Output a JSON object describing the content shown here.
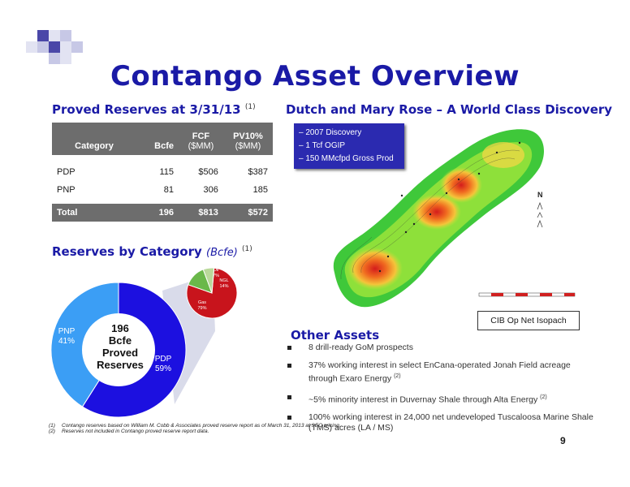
{
  "title": "Contango Asset Overview",
  "proved_reserves": {
    "heading": "Proved Reserves at 3/31/13",
    "heading_note": "(1)",
    "columns": [
      "Category",
      "Bcfe",
      "FCF\n($MM)",
      "PV10%\n($MM)"
    ],
    "col_category": "Category",
    "col_bcfe": "Bcfe",
    "col_fcf_1": "FCF",
    "col_fcf_2": "($MM)",
    "col_pv_1": "PV10%",
    "col_pv_2": "($MM)",
    "rows": [
      {
        "category": "PDP",
        "bcfe": "115",
        "fcf": "$506",
        "pv10": "$387"
      },
      {
        "category": "PNP",
        "bcfe": "81",
        "fcf": "306",
        "pv10": "185"
      }
    ],
    "total": {
      "category": "Total",
      "bcfe": "196",
      "fcf": "$813",
      "pv10": "$572"
    }
  },
  "reserves_by_category": {
    "heading": "Reserves by Category",
    "unit": "(Bcfe)",
    "note": "(1)",
    "center_lines": [
      "196",
      "Bcfe",
      "Proved",
      "Reserves"
    ],
    "pdp_label": "PDP",
    "pdp_pct": "59%",
    "pnp_label": "PNP",
    "pnp_pct": "41%",
    "oil_label": "Oil",
    "oil_pct": "7%",
    "ngl_label": "NGL",
    "ngl_pct": "14%",
    "gas_label": "Gas",
    "gas_pct": "79%"
  },
  "chart_data": [
    {
      "type": "pie",
      "categories": [
        "PDP",
        "PNP"
      ],
      "values": [
        59,
        41
      ],
      "colors": [
        "#1c10e0",
        "#3b9ef5"
      ]
    },
    {
      "type": "pie",
      "categories": [
        "Gas",
        "NGL",
        "Oil"
      ],
      "values": [
        79,
        14,
        7
      ],
      "colors": [
        "#c8141c",
        "#6ab84a",
        "#b9d99a"
      ]
    }
  ],
  "dutch": {
    "heading": "Dutch and Mary Rose – A World Class Discovery",
    "info_lines": [
      "– 2007 Discovery",
      "– 1 Tcf OGIP",
      "– 150 MMcfpd Gross Prod"
    ],
    "map_caption": "CIB Op Net Isopach",
    "north": "N"
  },
  "other_assets": {
    "heading": "Other Assets",
    "items": [
      {
        "text": "8 drill-ready GoM prospects",
        "sup": ""
      },
      {
        "text": "37% working interest in select EnCana-operated Jonah Field acreage through Exaro Energy",
        "sup": "(2)"
      },
      {
        "text": "~5% minority interest in Duvernay Shale through Alta Energy",
        "sup": "(2)"
      },
      {
        "text": "100% working interest in 24,000 net undeveloped Tuscaloosa Marine Shale (TMS) acres (LA / MS)",
        "sup": ""
      }
    ]
  },
  "footnotes": [
    {
      "num": "(1)",
      "text": "Contango reserves based on William M. Cobb & Associates proved reserve report as of March 31, 2013 at SEC pricing."
    },
    {
      "num": "(2)",
      "text": "Reserves not included in Contango proved reserve report data."
    }
  ],
  "page_number": "9",
  "colors": {
    "title": "#1a1aa6",
    "table_header": "#6d6d6d",
    "pdp": "#1c10e0",
    "pnp": "#3b9ef5",
    "gas": "#c8141c"
  }
}
